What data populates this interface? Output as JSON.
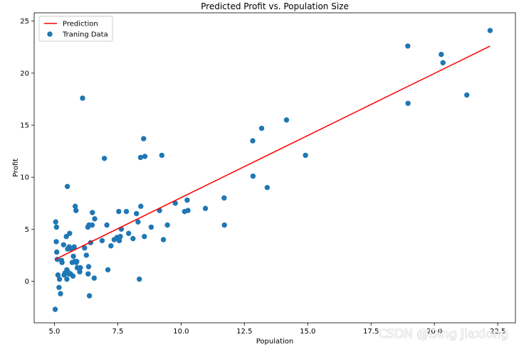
{
  "chart_data": {
    "type": "scatter",
    "title": "Predicted Profit vs. Population Size",
    "xlabel": "Population",
    "ylabel": "Profit",
    "xlim": [
      4.2,
      23.2
    ],
    "ylim": [
      -4.0,
      25.8
    ],
    "xticks": [
      5.0,
      7.5,
      10.0,
      12.5,
      15.0,
      17.5,
      20.0,
      22.5
    ],
    "xtick_labels": [
      "5.0",
      "7.5",
      "10.0",
      "12.5",
      "15.0",
      "17.5",
      "20.0",
      "22.5"
    ],
    "yticks": [
      0,
      5,
      10,
      15,
      20,
      25
    ],
    "ytick_labels": [
      "0",
      "5",
      "10",
      "15",
      "20",
      "25"
    ],
    "grid": false,
    "legend_position": "top-left",
    "series": [
      {
        "name": "Prediction",
        "type": "line",
        "color": "#ff0000",
        "x": [
          5.03,
          22.2
        ],
        "y": [
          2.1,
          22.6
        ]
      },
      {
        "name": "Traning Data",
        "type": "scatter",
        "color": "#1f77b4",
        "x": [
          5.03,
          5.05,
          5.07,
          5.08,
          5.09,
          5.11,
          5.14,
          5.18,
          5.2,
          5.24,
          5.28,
          5.3,
          5.36,
          5.38,
          5.42,
          5.47,
          5.49,
          5.49,
          5.51,
          5.52,
          5.53,
          5.56,
          5.58,
          5.6,
          5.62,
          5.64,
          5.66,
          5.7,
          5.73,
          5.75,
          5.78,
          5.8,
          5.82,
          5.85,
          5.86,
          5.88,
          5.9,
          6.0,
          6.02,
          6.11,
          6.19,
          6.26,
          6.32,
          6.33,
          6.35,
          6.36,
          6.38,
          6.43,
          6.49,
          6.5,
          6.57,
          6.59,
          6.88,
          6.97,
          7.07,
          7.11,
          7.23,
          7.36,
          7.47,
          7.54,
          7.56,
          7.6,
          7.64,
          7.84,
          7.93,
          8.1,
          8.24,
          8.3,
          8.35,
          8.4,
          8.41,
          8.52,
          8.55,
          8.57,
          8.82,
          9.15,
          9.24,
          9.3,
          9.46,
          9.77,
          10.14,
          10.24,
          10.27,
          10.96,
          11.7,
          11.71,
          12.83,
          12.84,
          13.18,
          13.4,
          14.16,
          14.91,
          18.95,
          18.96,
          20.27,
          20.34,
          21.28,
          22.2
        ],
        "y": [
          -2.7,
          5.7,
          3.8,
          5.2,
          2.8,
          2.1,
          0.6,
          -0.6,
          0.2,
          -1.2,
          2.0,
          1.8,
          3.5,
          0.6,
          0.8,
          4.3,
          1.1,
          0.2,
          9.1,
          3.1,
          0.9,
          0.7,
          3.3,
          4.6,
          3.2,
          0.7,
          3.1,
          1.8,
          0.5,
          2.4,
          3.3,
          1.9,
          7.2,
          6.8,
          1.8,
          1.9,
          1.3,
          0.9,
          1.3,
          17.6,
          3.2,
          2.5,
          5.2,
          0.7,
          1.4,
          5.4,
          -1.4,
          3.7,
          5.4,
          6.6,
          0.3,
          6.0,
          3.9,
          11.8,
          5.4,
          1.1,
          3.4,
          4.0,
          4.2,
          6.7,
          3.9,
          4.3,
          5.0,
          6.7,
          4.6,
          4.1,
          6.5,
          5.7,
          0.2,
          11.9,
          7.2,
          13.7,
          4.3,
          12.0,
          5.2,
          6.8,
          12.1,
          4.0,
          5.4,
          7.5,
          6.7,
          7.8,
          6.8,
          7.0,
          8.0,
          5.4,
          13.5,
          10.1,
          14.7,
          9.0,
          15.5,
          12.1,
          22.6,
          17.1,
          21.8,
          21.0,
          17.9,
          24.1
        ]
      }
    ]
  },
  "watermark": "CSDN @Ding Jiaxiong"
}
